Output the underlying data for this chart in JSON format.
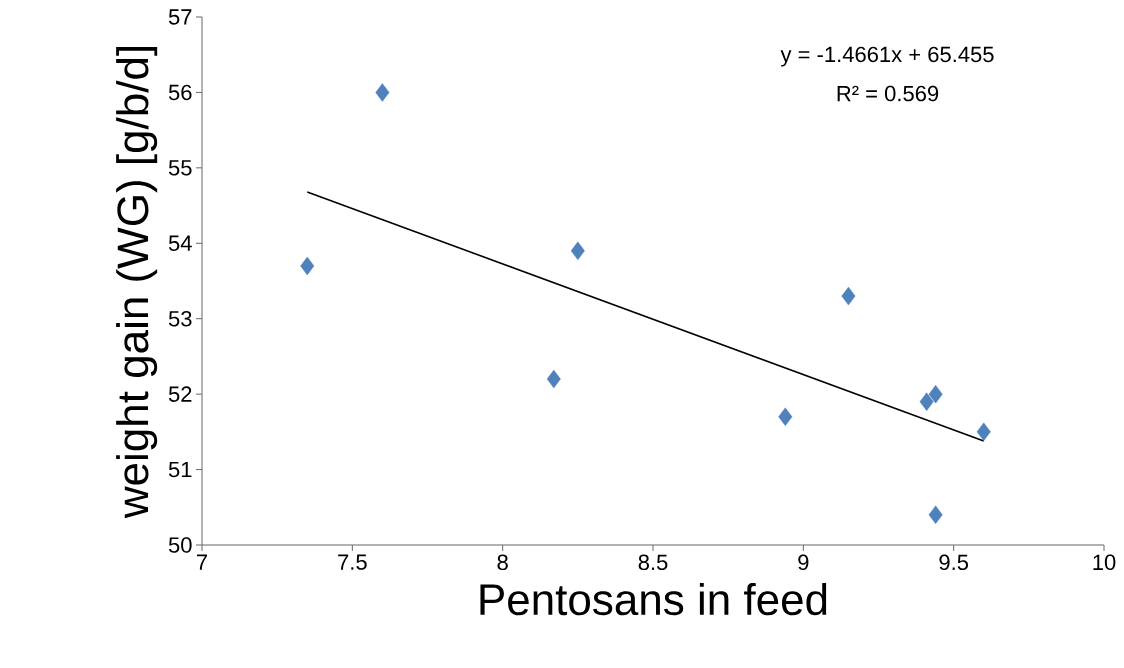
{
  "chart_data": {
    "type": "scatter",
    "xlabel": "Pentosans in feed",
    "ylabel": "weight gain (WG) [g/b/d]",
    "annotations": [
      "y = -1.4661x + 65.455",
      "R² = 0.569"
    ],
    "series": [
      {
        "color": "#4f81bd",
        "marker": "diamond",
        "x": [
          7.35,
          7.6,
          8.17,
          8.25,
          8.94,
          9.15,
          9.41,
          9.44,
          9.6,
          9.44
        ],
        "values": [
          53.7,
          56.0,
          52.2,
          53.9,
          51.7,
          53.3,
          51.9,
          52.0,
          51.5,
          50.4
        ]
      },
      {
        "type": "line",
        "color": "#000000",
        "marker": "none",
        "line_style": "solid",
        "x": [
          7.35,
          9.6
        ],
        "values": [
          54.68,
          51.38
        ]
      }
    ],
    "xlim": [
      7,
      10
    ],
    "ylim": [
      50,
      57
    ],
    "xticks": [
      7,
      7.5,
      8,
      8.5,
      9,
      9.5,
      10
    ],
    "yticks": [
      50,
      51,
      52,
      53,
      54,
      55,
      56,
      57
    ],
    "grid": false
  }
}
